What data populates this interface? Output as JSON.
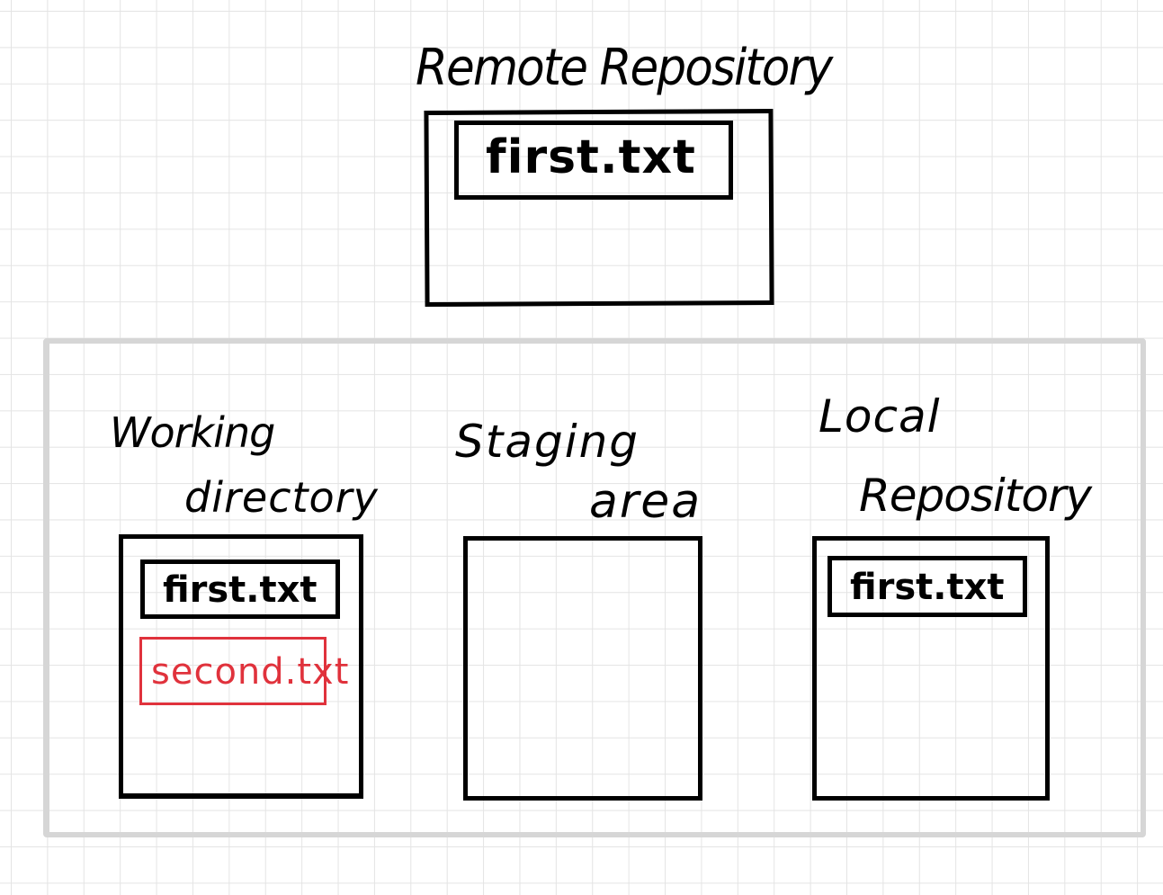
{
  "diagram": {
    "remote_repository": {
      "title": "Remote Repository",
      "files": [
        {
          "name": "first.txt",
          "color": "#000000"
        }
      ]
    },
    "local": {
      "working_directory": {
        "title_line1": "Working",
        "title_line2": "directory",
        "files": [
          {
            "name": "first.txt",
            "color": "#000000"
          },
          {
            "name": "second.txt",
            "color": "#e0323c"
          }
        ]
      },
      "staging_area": {
        "title_line1": "Staging",
        "title_line2": "area",
        "files": []
      },
      "local_repository": {
        "title_line1": "Local",
        "title_line2": "Repository",
        "files": [
          {
            "name": "first.txt",
            "color": "#000000"
          }
        ]
      }
    }
  },
  "colors": {
    "ink": "#000000",
    "new_file": "#e0323c",
    "local_boundary": "#d6d6d6",
    "grid": "#e4e4e4"
  }
}
